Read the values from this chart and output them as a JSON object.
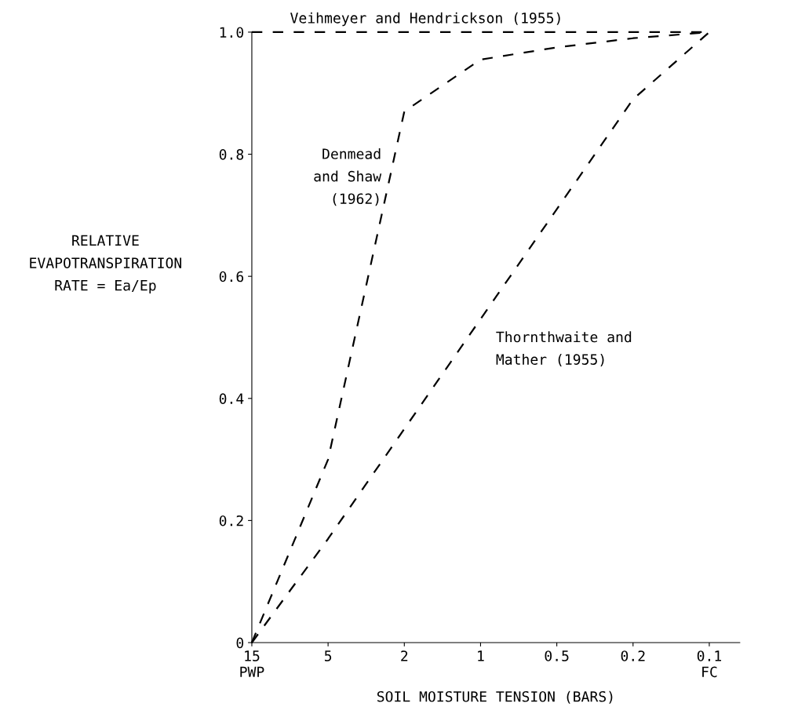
{
  "chart_data": {
    "type": "line",
    "xlabel": "SOIL MOISTURE TENSION (BARS)",
    "ylabel": "RELATIVE\nEVAPOTRANSPIRATION\nRATE = Ea/Ep",
    "categories": [
      "15\nPWP",
      "5",
      "2",
      "1",
      "0.5",
      "0.2",
      "0.1\nFC"
    ],
    "series": [
      {
        "name": "Veihmeyer and Hendrickson (1955)",
        "color": "#000000",
        "values": [
          1.0,
          1.0,
          1.0,
          1.0,
          1.0,
          1.0,
          1.0
        ]
      },
      {
        "name": "Denmead\nand Shaw\n(1962)",
        "color": "#000000",
        "values": [
          0,
          0.3,
          0.87,
          0.955,
          0.975,
          0.99,
          1.0
        ]
      },
      {
        "name": "Thornthwaite and\nMather (1955)",
        "color": "#000000",
        "values": [
          0,
          0.17,
          0.35,
          0.53,
          0.71,
          0.89,
          1.0
        ]
      }
    ],
    "ylim": [
      0,
      1.0
    ],
    "yticks": [
      0,
      0.2,
      0.4,
      0.6,
      0.8,
      {
        "value": 1.0,
        "label": "1.0"
      }
    ],
    "line_style": "dashed",
    "grid": false,
    "legend": false
  }
}
